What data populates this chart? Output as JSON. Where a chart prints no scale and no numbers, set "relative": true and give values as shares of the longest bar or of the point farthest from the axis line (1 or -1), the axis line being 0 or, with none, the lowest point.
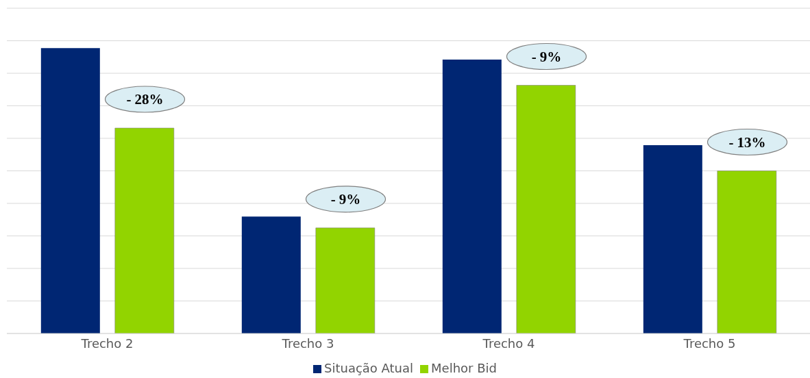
{
  "chart_data": {
    "type": "bar",
    "relative": true,
    "categories": [
      "Trecho 2",
      "Trecho 3",
      "Trecho 4",
      "Trecho 5"
    ],
    "series": [
      {
        "name": "Situação Atual",
        "color": "#002673",
        "values": [
          1,
          0.41,
          0.96,
          0.66
        ]
      },
      {
        "name": "Melhor Bid",
        "color": "#92d400",
        "values": [
          0.72,
          0.37,
          0.87,
          0.57
        ]
      }
    ],
    "annotations": [
      "- 28%",
      "- 9%",
      "- 9%",
      "- 13%"
    ],
    "grid": true,
    "legend": "bottom"
  }
}
